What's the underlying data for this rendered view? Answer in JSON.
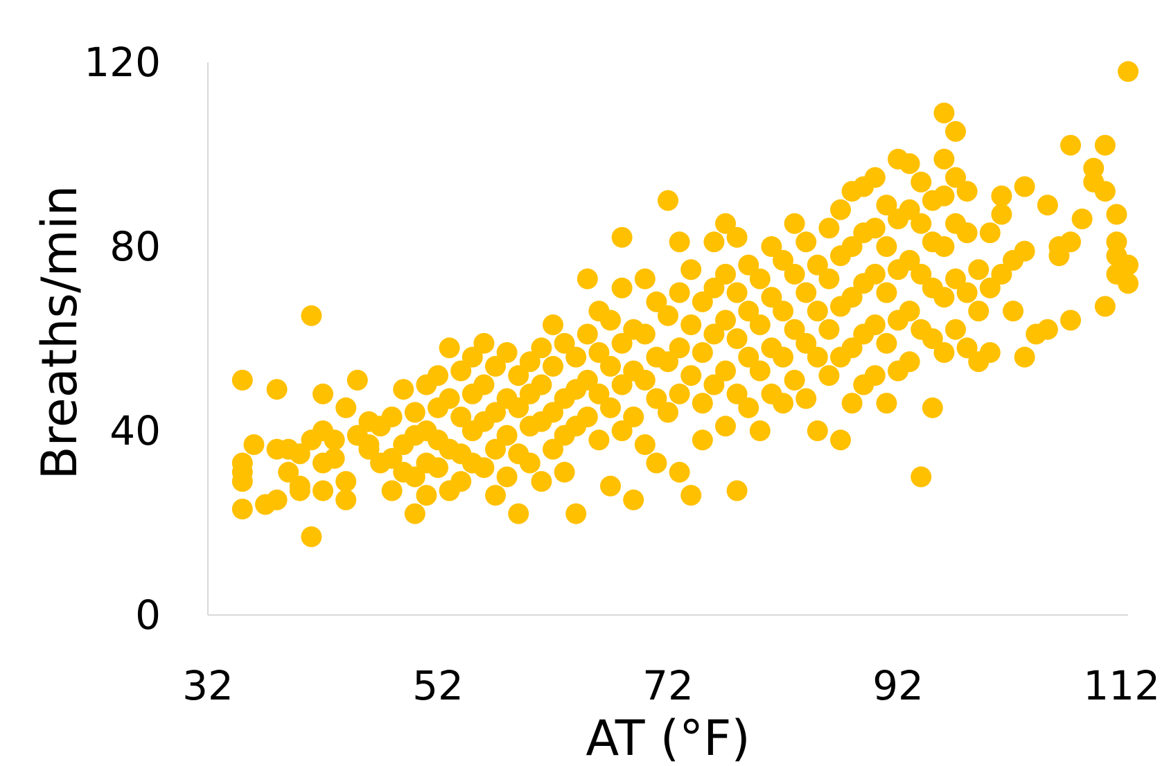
{
  "colors": {
    "points": "#FFC000",
    "axis": "#D9D9D9",
    "text": "#000000"
  },
  "chart_data": {
    "type": "scatter",
    "title": "",
    "xlabel": "AT (°F)",
    "ylabel": "Breaths/min",
    "xlim": [
      32,
      112
    ],
    "ylim": [
      0,
      120
    ],
    "xticks": [
      "32",
      "52",
      "72",
      "92",
      "112"
    ],
    "yticks": [
      "0",
      "40",
      "80",
      "120"
    ],
    "grid": false,
    "legend": "none",
    "series": [
      {
        "points": [
          [
            35,
            51
          ],
          [
            35,
            33
          ],
          [
            35,
            31
          ],
          [
            35,
            29
          ],
          [
            35,
            23
          ],
          [
            36,
            37
          ],
          [
            37,
            24
          ],
          [
            38,
            36
          ],
          [
            38,
            49
          ],
          [
            38,
            25
          ],
          [
            39,
            36
          ],
          [
            39,
            31
          ],
          [
            40,
            35
          ],
          [
            40,
            28
          ],
          [
            40,
            27
          ],
          [
            41,
            65
          ],
          [
            41,
            17
          ],
          [
            41,
            38
          ],
          [
            42,
            48
          ],
          [
            42,
            40
          ],
          [
            42,
            33
          ],
          [
            42,
            27
          ],
          [
            43,
            38
          ],
          [
            43,
            34
          ],
          [
            44,
            45
          ],
          [
            44,
            29
          ],
          [
            44,
            25
          ],
          [
            45,
            51
          ],
          [
            45,
            39
          ],
          [
            46,
            37
          ],
          [
            46,
            42
          ],
          [
            46,
            36
          ],
          [
            47,
            33
          ],
          [
            47,
            41
          ],
          [
            48,
            43
          ],
          [
            48,
            27
          ],
          [
            48,
            34
          ],
          [
            49,
            49
          ],
          [
            49,
            37
          ],
          [
            49,
            31
          ],
          [
            50,
            44
          ],
          [
            50,
            39
          ],
          [
            50,
            30
          ],
          [
            50,
            22
          ],
          [
            51,
            50
          ],
          [
            51,
            40
          ],
          [
            51,
            33
          ],
          [
            51,
            26
          ],
          [
            52,
            52
          ],
          [
            52,
            45
          ],
          [
            52,
            38
          ],
          [
            52,
            32
          ],
          [
            53,
            58
          ],
          [
            53,
            47
          ],
          [
            53,
            36
          ],
          [
            53,
            27
          ],
          [
            54,
            53
          ],
          [
            54,
            43
          ],
          [
            54,
            35
          ],
          [
            54,
            29
          ],
          [
            55,
            56
          ],
          [
            55,
            48
          ],
          [
            55,
            40
          ],
          [
            55,
            33
          ],
          [
            56,
            59
          ],
          [
            56,
            50
          ],
          [
            56,
            42
          ],
          [
            56,
            32
          ],
          [
            57,
            54
          ],
          [
            57,
            44
          ],
          [
            57,
            36
          ],
          [
            57,
            26
          ],
          [
            58,
            57
          ],
          [
            58,
            47
          ],
          [
            58,
            39
          ],
          [
            58,
            30
          ],
          [
            59,
            52
          ],
          [
            59,
            45
          ],
          [
            59,
            35
          ],
          [
            59,
            22
          ],
          [
            60,
            55
          ],
          [
            60,
            48
          ],
          [
            60,
            41
          ],
          [
            60,
            33
          ],
          [
            61,
            58
          ],
          [
            61,
            50
          ],
          [
            61,
            42
          ],
          [
            61,
            29
          ],
          [
            62,
            63
          ],
          [
            62,
            54
          ],
          [
            62,
            44
          ],
          [
            62,
            36
          ],
          [
            63,
            59
          ],
          [
            63,
            47
          ],
          [
            63,
            39
          ],
          [
            63,
            31
          ],
          [
            64,
            56
          ],
          [
            64,
            49
          ],
          [
            64,
            41
          ],
          [
            64,
            22
          ],
          [
            65,
            73
          ],
          [
            65,
            61
          ],
          [
            65,
            51
          ],
          [
            65,
            43
          ],
          [
            66,
            66
          ],
          [
            66,
            57
          ],
          [
            66,
            48
          ],
          [
            66,
            38
          ],
          [
            67,
            64
          ],
          [
            67,
            54
          ],
          [
            67,
            45
          ],
          [
            67,
            28
          ],
          [
            68,
            82
          ],
          [
            68,
            71
          ],
          [
            68,
            59
          ],
          [
            68,
            50
          ],
          [
            68,
            40
          ],
          [
            69,
            62
          ],
          [
            69,
            53
          ],
          [
            69,
            43
          ],
          [
            69,
            25
          ],
          [
            70,
            73
          ],
          [
            70,
            61
          ],
          [
            70,
            51
          ],
          [
            70,
            37
          ],
          [
            71,
            68
          ],
          [
            71,
            56
          ],
          [
            71,
            47
          ],
          [
            71,
            33
          ],
          [
            72,
            90
          ],
          [
            72,
            65
          ],
          [
            72,
            55
          ],
          [
            72,
            44
          ],
          [
            73,
            81
          ],
          [
            73,
            70
          ],
          [
            73,
            58
          ],
          [
            73,
            48
          ],
          [
            73,
            31
          ],
          [
            74,
            75
          ],
          [
            74,
            63
          ],
          [
            74,
            52
          ],
          [
            74,
            26
          ],
          [
            75,
            68
          ],
          [
            75,
            57
          ],
          [
            75,
            46
          ],
          [
            75,
            38
          ],
          [
            76,
            81
          ],
          [
            76,
            71
          ],
          [
            76,
            61
          ],
          [
            76,
            50
          ],
          [
            77,
            85
          ],
          [
            77,
            74
          ],
          [
            77,
            64
          ],
          [
            77,
            53
          ],
          [
            77,
            41
          ],
          [
            78,
            82
          ],
          [
            78,
            70
          ],
          [
            78,
            60
          ],
          [
            78,
            48
          ],
          [
            78,
            27
          ],
          [
            79,
            76
          ],
          [
            79,
            66
          ],
          [
            79,
            56
          ],
          [
            79,
            45
          ],
          [
            80,
            73
          ],
          [
            80,
            63
          ],
          [
            80,
            53
          ],
          [
            80,
            40
          ],
          [
            81,
            80
          ],
          [
            81,
            69
          ],
          [
            81,
            58
          ],
          [
            81,
            48
          ],
          [
            82,
            77
          ],
          [
            82,
            66
          ],
          [
            82,
            56
          ],
          [
            82,
            46
          ],
          [
            83,
            85
          ],
          [
            83,
            74
          ],
          [
            83,
            62
          ],
          [
            83,
            51
          ],
          [
            84,
            81
          ],
          [
            84,
            70
          ],
          [
            84,
            59
          ],
          [
            84,
            47
          ],
          [
            85,
            76
          ],
          [
            85,
            66
          ],
          [
            85,
            56
          ],
          [
            85,
            40
          ],
          [
            86,
            84
          ],
          [
            86,
            73
          ],
          [
            86,
            62
          ],
          [
            86,
            52
          ],
          [
            87,
            88
          ],
          [
            87,
            78
          ],
          [
            87,
            67
          ],
          [
            87,
            56
          ],
          [
            87,
            38
          ],
          [
            88,
            92
          ],
          [
            88,
            80
          ],
          [
            88,
            69
          ],
          [
            88,
            58
          ],
          [
            88,
            46
          ],
          [
            89,
            93
          ],
          [
            89,
            83
          ],
          [
            89,
            72
          ],
          [
            89,
            61
          ],
          [
            89,
            50
          ],
          [
            90,
            95
          ],
          [
            90,
            84
          ],
          [
            90,
            74
          ],
          [
            90,
            63
          ],
          [
            90,
            52
          ],
          [
            91,
            89
          ],
          [
            91,
            80
          ],
          [
            91,
            70
          ],
          [
            91,
            59
          ],
          [
            91,
            46
          ],
          [
            92,
            99
          ],
          [
            92,
            86
          ],
          [
            92,
            75
          ],
          [
            92,
            64
          ],
          [
            92,
            53
          ],
          [
            93,
            98
          ],
          [
            93,
            88
          ],
          [
            93,
            77
          ],
          [
            93,
            66
          ],
          [
            93,
            55
          ],
          [
            94,
            94
          ],
          [
            94,
            85
          ],
          [
            94,
            74
          ],
          [
            94,
            62
          ],
          [
            94,
            30
          ],
          [
            95,
            90
          ],
          [
            95,
            81
          ],
          [
            95,
            71
          ],
          [
            95,
            60
          ],
          [
            95,
            45
          ],
          [
            96,
            109
          ],
          [
            96,
            99
          ],
          [
            96,
            91
          ],
          [
            96,
            80
          ],
          [
            96,
            69
          ],
          [
            96,
            57
          ],
          [
            97,
            105
          ],
          [
            97,
            95
          ],
          [
            97,
            85
          ],
          [
            97,
            73
          ],
          [
            97,
            62
          ],
          [
            98,
            92
          ],
          [
            98,
            83
          ],
          [
            98,
            70
          ],
          [
            98,
            58
          ],
          [
            99,
            75
          ],
          [
            99,
            66
          ],
          [
            99,
            55
          ],
          [
            100,
            83
          ],
          [
            100,
            71
          ],
          [
            100,
            57
          ],
          [
            101,
            87
          ],
          [
            101,
            91
          ],
          [
            101,
            74
          ],
          [
            102,
            77
          ],
          [
            102,
            66
          ],
          [
            103,
            93
          ],
          [
            103,
            79
          ],
          [
            103,
            56
          ],
          [
            104,
            61
          ],
          [
            105,
            89
          ],
          [
            105,
            62
          ],
          [
            106,
            80
          ],
          [
            106,
            78
          ],
          [
            107,
            102
          ],
          [
            107,
            81
          ],
          [
            107,
            64
          ],
          [
            108,
            86
          ],
          [
            109,
            94
          ],
          [
            109,
            97
          ],
          [
            110,
            92
          ],
          [
            110,
            67
          ],
          [
            110,
            102
          ],
          [
            111,
            87
          ],
          [
            111,
            81
          ],
          [
            111,
            78
          ],
          [
            111,
            74
          ],
          [
            112,
            118
          ],
          [
            112,
            76
          ],
          [
            112,
            72
          ]
        ]
      }
    ]
  }
}
